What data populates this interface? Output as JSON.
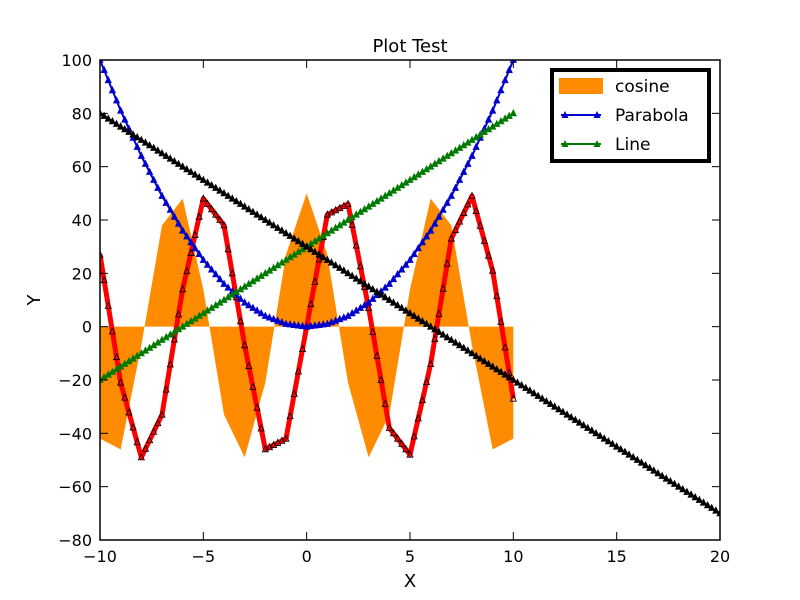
{
  "chart_data": {
    "type": "line",
    "title": "Plot Test",
    "xlabel": "X",
    "ylabel": "Y",
    "xlim": [
      -10,
      20
    ],
    "ylim": [
      -80,
      100
    ],
    "xticks": [
      -10,
      -5,
      0,
      5,
      10,
      15,
      20
    ],
    "yticks": [
      -80,
      -60,
      -40,
      -20,
      0,
      20,
      40,
      60,
      80,
      100
    ],
    "xtick_labels": [
      "−10",
      "−5",
      "0",
      "5",
      "10",
      "15",
      "20"
    ],
    "ytick_labels": [
      "−80",
      "−60",
      "−40",
      "−20",
      "0",
      "20",
      "40",
      "60",
      "80",
      "100"
    ],
    "grid": false,
    "legend_position": "top-right",
    "series": [
      {
        "name": "cosine",
        "kind": "fill",
        "color": "#ff8c00",
        "x": [
          -10,
          -9,
          -8,
          -7,
          -6,
          -5,
          -4,
          -3,
          -2,
          -1,
          0,
          1,
          2,
          3,
          4,
          5,
          6,
          7,
          8,
          9,
          10
        ],
        "y": [
          -42,
          -46,
          -7,
          38,
          48,
          14,
          -33,
          -49,
          -21,
          27,
          50,
          27,
          -21,
          -49,
          -33,
          14,
          48,
          38,
          -7,
          -46,
          -42
        ]
      },
      {
        "kind": "line",
        "color": "#ff0000",
        "marker_color": "#000000",
        "x": [
          -10,
          -9,
          -8,
          -7,
          -6,
          -5,
          -4,
          -3,
          -2,
          -1,
          0,
          1,
          2,
          3,
          4,
          5,
          6,
          7,
          8,
          9,
          10
        ],
        "y": [
          27,
          -21,
          -49,
          -33,
          14,
          48,
          38,
          -7,
          -46,
          -42,
          0,
          42,
          46,
          7,
          -38,
          -48,
          -14,
          33,
          49,
          21,
          -27
        ]
      },
      {
        "name": "Parabola",
        "kind": "line",
        "color": "#0000cc",
        "marker_color": "#0000cc",
        "x": [
          -10,
          -9,
          -8,
          -7,
          -6,
          -5,
          -4,
          -3,
          -2,
          -1,
          0,
          1,
          2,
          3,
          4,
          5,
          6,
          7,
          8,
          9,
          10
        ],
        "y": [
          100,
          81,
          64,
          49,
          36,
          25,
          16,
          9,
          4,
          1,
          0,
          1,
          4,
          9,
          16,
          25,
          36,
          49,
          64,
          81,
          100
        ]
      },
      {
        "name": "Line",
        "kind": "line",
        "color": "#007a00",
        "marker_color": "#007a00",
        "x": [
          -10,
          10
        ],
        "y": [
          -20,
          80
        ]
      },
      {
        "kind": "line",
        "color": "#000000",
        "marker_color": "#000000",
        "x": [
          -10,
          20
        ],
        "y": [
          80,
          -70
        ]
      }
    ]
  }
}
